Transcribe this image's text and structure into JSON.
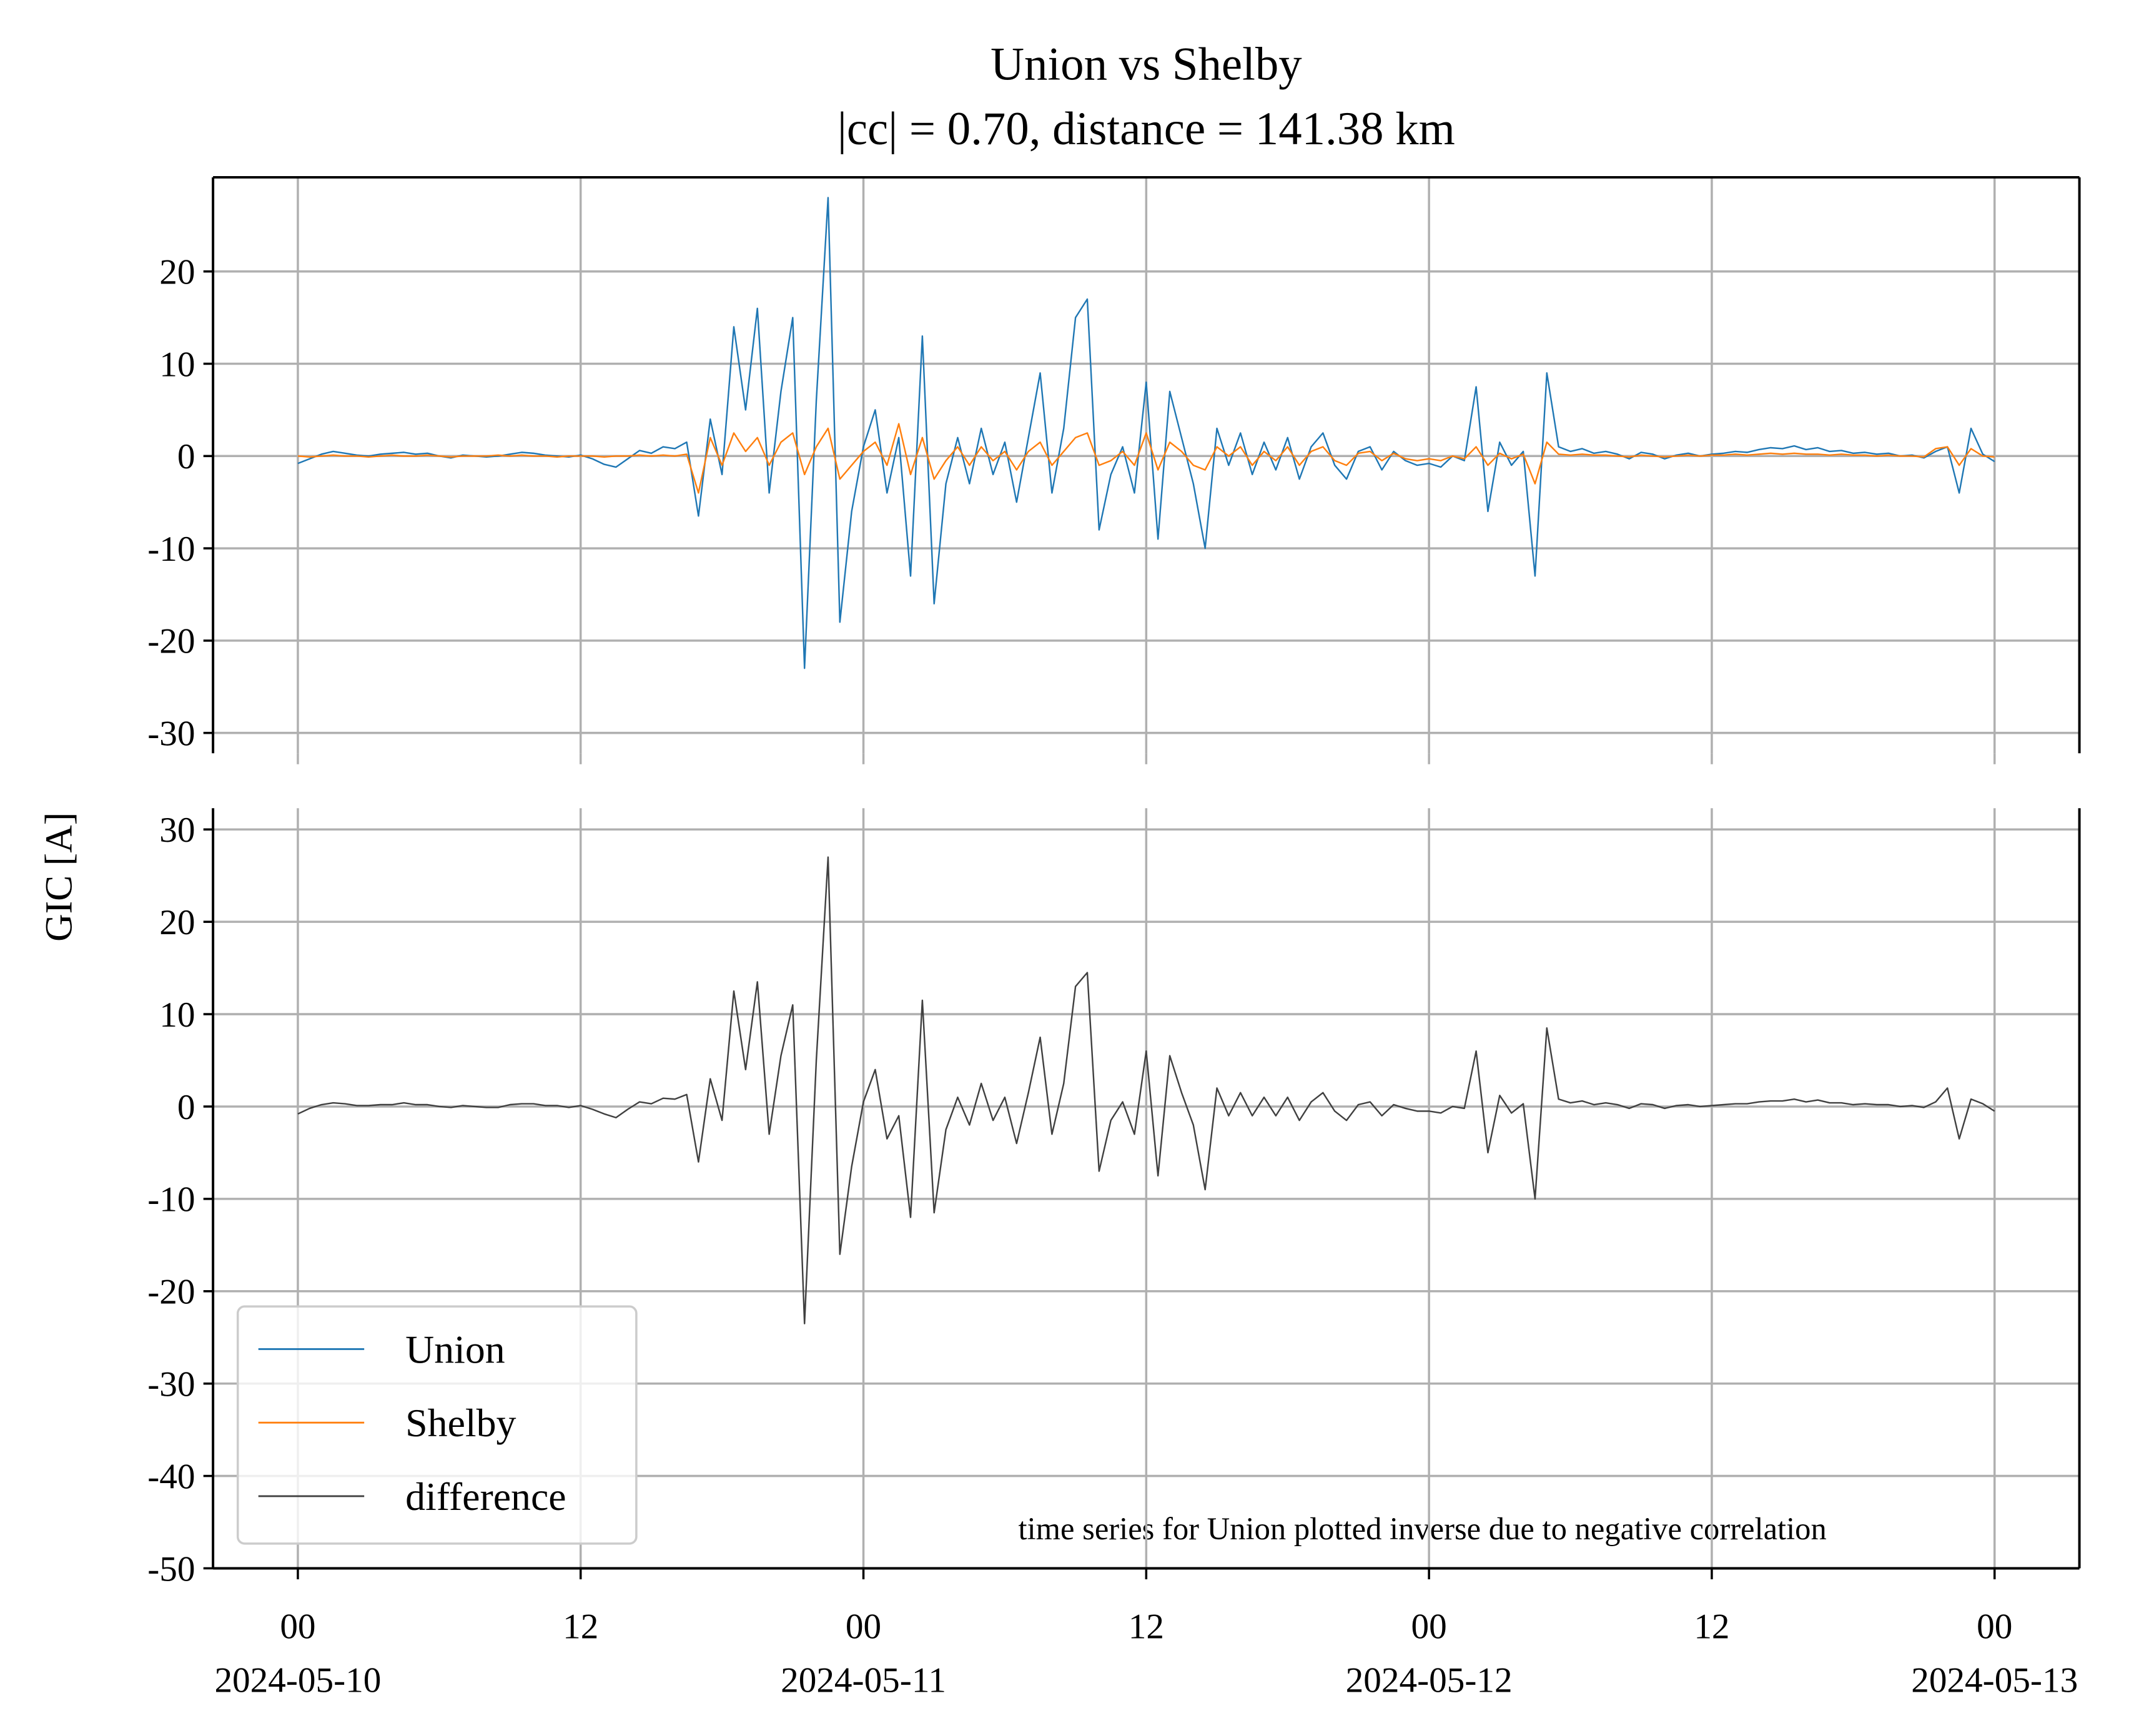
{
  "chart_data": {
    "type": "line",
    "title": "Union vs Shelby",
    "subtitle": "|cc| = 0.70, distance = 141.38 km",
    "ylabel": "GIC [A]",
    "annotation": "time series for Union plotted inverse due to negative correlation",
    "grid": true,
    "legend": "lower left",
    "xlim": [
      "2024-05-09 20:24",
      "2024-05-13 03:36"
    ],
    "xticks": [
      {
        "value": "2024-05-10 00:00",
        "label": "00",
        "date_label": "2024-05-10"
      },
      {
        "value": "2024-05-10 12:00",
        "label": "12"
      },
      {
        "value": "2024-05-11 00:00",
        "label": "00",
        "date_label": "2024-05-11"
      },
      {
        "value": "2024-05-11 12:00",
        "label": "12"
      },
      {
        "value": "2024-05-12 00:00",
        "label": "00",
        "date_label": "2024-05-12"
      },
      {
        "value": "2024-05-12 12:00",
        "label": "12"
      },
      {
        "value": "2024-05-13 00:00",
        "label": "00",
        "date_label": "2024-05-13"
      }
    ],
    "x": [
      "2024-05-10 00:00",
      "2024-05-10 00:30",
      "2024-05-10 01:00",
      "2024-05-10 01:30",
      "2024-05-10 02:00",
      "2024-05-10 02:30",
      "2024-05-10 03:00",
      "2024-05-10 03:30",
      "2024-05-10 04:00",
      "2024-05-10 04:30",
      "2024-05-10 05:00",
      "2024-05-10 05:30",
      "2024-05-10 06:00",
      "2024-05-10 06:30",
      "2024-05-10 07:00",
      "2024-05-10 07:30",
      "2024-05-10 08:00",
      "2024-05-10 08:30",
      "2024-05-10 09:00",
      "2024-05-10 09:30",
      "2024-05-10 10:00",
      "2024-05-10 10:30",
      "2024-05-10 11:00",
      "2024-05-10 11:30",
      "2024-05-10 12:00",
      "2024-05-10 12:30",
      "2024-05-10 13:00",
      "2024-05-10 13:30",
      "2024-05-10 14:00",
      "2024-05-10 14:30",
      "2024-05-10 15:00",
      "2024-05-10 15:30",
      "2024-05-10 16:00",
      "2024-05-10 16:30",
      "2024-05-10 17:00",
      "2024-05-10 17:30",
      "2024-05-10 18:00",
      "2024-05-10 18:30",
      "2024-05-10 19:00",
      "2024-05-10 19:30",
      "2024-05-10 20:00",
      "2024-05-10 20:30",
      "2024-05-10 21:00",
      "2024-05-10 21:30",
      "2024-05-10 22:00",
      "2024-05-10 22:30",
      "2024-05-10 23:00",
      "2024-05-10 23:30",
      "2024-05-11 00:00",
      "2024-05-11 00:30",
      "2024-05-11 01:00",
      "2024-05-11 01:30",
      "2024-05-11 02:00",
      "2024-05-11 02:30",
      "2024-05-11 03:00",
      "2024-05-11 03:30",
      "2024-05-11 04:00",
      "2024-05-11 04:30",
      "2024-05-11 05:00",
      "2024-05-11 05:30",
      "2024-05-11 06:00",
      "2024-05-11 06:30",
      "2024-05-11 07:00",
      "2024-05-11 07:30",
      "2024-05-11 08:00",
      "2024-05-11 08:30",
      "2024-05-11 09:00",
      "2024-05-11 09:30",
      "2024-05-11 10:00",
      "2024-05-11 10:30",
      "2024-05-11 11:00",
      "2024-05-11 11:30",
      "2024-05-11 12:00",
      "2024-05-11 12:30",
      "2024-05-11 13:00",
      "2024-05-11 13:30",
      "2024-05-11 14:00",
      "2024-05-11 14:30",
      "2024-05-11 15:00",
      "2024-05-11 15:30",
      "2024-05-11 16:00",
      "2024-05-11 16:30",
      "2024-05-11 17:00",
      "2024-05-11 17:30",
      "2024-05-11 18:00",
      "2024-05-11 18:30",
      "2024-05-11 19:00",
      "2024-05-11 19:30",
      "2024-05-11 20:00",
      "2024-05-11 20:30",
      "2024-05-11 21:00",
      "2024-05-11 21:30",
      "2024-05-11 22:00",
      "2024-05-11 22:30",
      "2024-05-11 23:00",
      "2024-05-11 23:30",
      "2024-05-12 00:00",
      "2024-05-12 00:30",
      "2024-05-12 01:00",
      "2024-05-12 01:30",
      "2024-05-12 02:00",
      "2024-05-12 02:30",
      "2024-05-12 03:00",
      "2024-05-12 03:30",
      "2024-05-12 04:00",
      "2024-05-12 04:30",
      "2024-05-12 05:00",
      "2024-05-12 05:30",
      "2024-05-12 06:00",
      "2024-05-12 06:30",
      "2024-05-12 07:00",
      "2024-05-12 07:30",
      "2024-05-12 08:00",
      "2024-05-12 08:30",
      "2024-05-12 09:00",
      "2024-05-12 09:30",
      "2024-05-12 10:00",
      "2024-05-12 10:30",
      "2024-05-12 11:00",
      "2024-05-12 11:30",
      "2024-05-12 12:00",
      "2024-05-12 12:30",
      "2024-05-12 13:00",
      "2024-05-12 13:30",
      "2024-05-12 14:00",
      "2024-05-12 14:30",
      "2024-05-12 15:00",
      "2024-05-12 15:30",
      "2024-05-12 16:00",
      "2024-05-12 16:30",
      "2024-05-12 17:00",
      "2024-05-12 17:30",
      "2024-05-12 18:00",
      "2024-05-12 18:30",
      "2024-05-12 19:00",
      "2024-05-12 19:30",
      "2024-05-12 20:00",
      "2024-05-12 20:30",
      "2024-05-12 21:00",
      "2024-05-12 21:30",
      "2024-05-12 22:00",
      "2024-05-12 22:30",
      "2024-05-12 23:00",
      "2024-05-12 23:30",
      "2024-05-13 00:00"
    ],
    "panels": [
      {
        "ylim": [
          -32.2,
          30.2
        ],
        "yticks": [
          -30,
          -20,
          -10,
          0,
          10,
          20
        ],
        "series": [
          {
            "name": "Union",
            "color": "#1f77b4",
            "values": [
              -0.8,
              -0.3,
              0.2,
              0.5,
              0.3,
              0.1,
              0.0,
              0.2,
              0.3,
              0.4,
              0.2,
              0.3,
              0.0,
              -0.2,
              0.1,
              0.0,
              -0.1,
              0.0,
              0.2,
              0.4,
              0.3,
              0.1,
              0.0,
              -0.1,
              0.1,
              -0.3,
              -0.9,
              -1.2,
              -0.3,
              0.6,
              0.3,
              1.0,
              0.8,
              1.5,
              -6.5,
              4.0,
              -2.0,
              14.0,
              5.0,
              16.0,
              -4.0,
              7.0,
              15.0,
              -23.0,
              6.0,
              28.0,
              -18.0,
              -6.0,
              1.0,
              5.0,
              -4.0,
              2.0,
              -13.0,
              13.0,
              -16.0,
              -3.0,
              2.0,
              -3.0,
              3.0,
              -2.0,
              1.5,
              -5.0,
              2.0,
              9.0,
              -4.0,
              3.0,
              15.0,
              17.0,
              -8.0,
              -2.0,
              1.0,
              -4.0,
              8.0,
              -9.0,
              7.0,
              2.0,
              -3.0,
              -10.0,
              3.0,
              -1.0,
              2.5,
              -2.0,
              1.5,
              -1.5,
              2.0,
              -2.5,
              1.0,
              2.5,
              -1.0,
              -2.5,
              0.5,
              1.0,
              -1.5,
              0.5,
              -0.5,
              -1.0,
              -0.8,
              -1.2,
              0.0,
              -0.5,
              7.5,
              -6.0,
              1.5,
              -1.0,
              0.5,
              -13.0,
              9.0,
              1.0,
              0.5,
              0.8,
              0.3,
              0.5,
              0.2,
              -0.3,
              0.4,
              0.2,
              -0.3,
              0.1,
              0.3,
              0.0,
              0.2,
              0.3,
              0.5,
              0.4,
              0.7,
              0.9,
              0.8,
              1.1,
              0.7,
              0.9,
              0.5,
              0.6,
              0.3,
              0.4,
              0.2,
              0.3,
              0.0,
              0.1,
              -0.2,
              0.5,
              1.0,
              -4.0,
              3.0,
              0.2,
              -0.6
            ]
          },
          {
            "name": "Shelby",
            "color": "#ff7f0e",
            "values": [
              0,
              -0.1,
              0,
              0.1,
              0,
              0,
              -0.1,
              0,
              0.1,
              0,
              0,
              0.1,
              0,
              -0.1,
              0,
              0,
              0,
              0.1,
              0,
              0.1,
              0,
              0,
              -0.1,
              0,
              0,
              0,
              -0.1,
              0,
              0,
              0.1,
              0,
              0.1,
              0,
              0.2,
              -4.0,
              2.0,
              -1.0,
              2.5,
              0.5,
              2.0,
              -1.0,
              1.5,
              2.5,
              -2.0,
              1.0,
              3.0,
              -2.5,
              -1.0,
              0.5,
              1.5,
              -1.0,
              3.5,
              -2.0,
              2.0,
              -2.5,
              -0.5,
              1.0,
              -1.0,
              1.0,
              -0.5,
              0.5,
              -1.5,
              0.5,
              1.5,
              -1.0,
              0.5,
              2.0,
              2.5,
              -1.0,
              -0.5,
              0.5,
              -1.0,
              2.5,
              -1.5,
              1.5,
              0.5,
              -1.0,
              -1.5,
              1.0,
              0.0,
              1.0,
              -1.0,
              0.5,
              -0.5,
              1.0,
              -1.0,
              0.5,
              1.0,
              -0.5,
              -1.0,
              0.3,
              0.5,
              -0.5,
              0.3,
              -0.3,
              -0.5,
              -0.3,
              -0.5,
              0.0,
              -0.3,
              1.0,
              -1.0,
              0.3,
              -0.3,
              0.2,
              -3.0,
              1.5,
              0.2,
              0.1,
              0.2,
              0.1,
              0.1,
              0,
              -0.1,
              0.1,
              0,
              -0.1,
              0,
              0.1,
              0,
              0.1,
              0.1,
              0.2,
              0.1,
              0.2,
              0.3,
              0.2,
              0.3,
              0.2,
              0.2,
              0.1,
              0.2,
              0.1,
              0.1,
              0,
              0.1,
              0,
              0,
              -0.1,
              0.8,
              1.0,
              -1.0,
              0.8,
              0.0,
              -0.1
            ]
          }
        ]
      },
      {
        "ylim": [
          -50,
          32.3
        ],
        "yticks": [
          -50,
          -40,
          -30,
          -20,
          -10,
          0,
          10,
          20,
          30
        ],
        "series": [
          {
            "name": "difference",
            "color": "#404040",
            "values": [
              -0.8,
              -0.2,
              0.2,
              0.4,
              0.3,
              0.1,
              0.1,
              0.2,
              0.2,
              0.4,
              0.2,
              0.2,
              0.0,
              -0.1,
              0.1,
              0.0,
              -0.1,
              -0.1,
              0.2,
              0.3,
              0.3,
              0.1,
              0.1,
              -0.1,
              0.1,
              -0.3,
              -0.8,
              -1.2,
              -0.3,
              0.5,
              0.3,
              0.9,
              0.8,
              1.3,
              -6.0,
              3.0,
              -1.5,
              12.5,
              4.0,
              13.5,
              -3.0,
              5.5,
              11.0,
              -23.5,
              5.0,
              27.0,
              -16.0,
              -6.5,
              0.5,
              4.0,
              -3.5,
              -1.0,
              -12.0,
              11.5,
              -11.5,
              -2.5,
              1.0,
              -2.0,
              2.5,
              -1.5,
              1.0,
              -4.0,
              1.5,
              7.5,
              -3.0,
              2.5,
              13.0,
              14.5,
              -7.0,
              -1.5,
              0.5,
              -3.0,
              6.0,
              -7.5,
              5.5,
              1.5,
              -2.0,
              -9.0,
              2.0,
              -1.0,
              1.5,
              -1.0,
              1.0,
              -1.0,
              1.0,
              -1.5,
              0.5,
              1.5,
              -0.5,
              -1.5,
              0.2,
              0.5,
              -1.0,
              0.2,
              -0.2,
              -0.5,
              -0.5,
              -0.7,
              0.0,
              -0.2,
              6.0,
              -5.0,
              1.2,
              -0.7,
              0.3,
              -10.0,
              8.5,
              0.8,
              0.4,
              0.6,
              0.2,
              0.4,
              0.2,
              -0.2,
              0.3,
              0.2,
              -0.2,
              0.1,
              0.2,
              0.0,
              0.1,
              0.2,
              0.3,
              0.3,
              0.5,
              0.6,
              0.6,
              0.8,
              0.5,
              0.7,
              0.4,
              0.4,
              0.2,
              0.3,
              0.2,
              0.2,
              0.0,
              0.1,
              -0.1,
              0.5,
              2.0,
              -3.5,
              0.8,
              0.3,
              -0.5
            ]
          }
        ]
      }
    ]
  }
}
